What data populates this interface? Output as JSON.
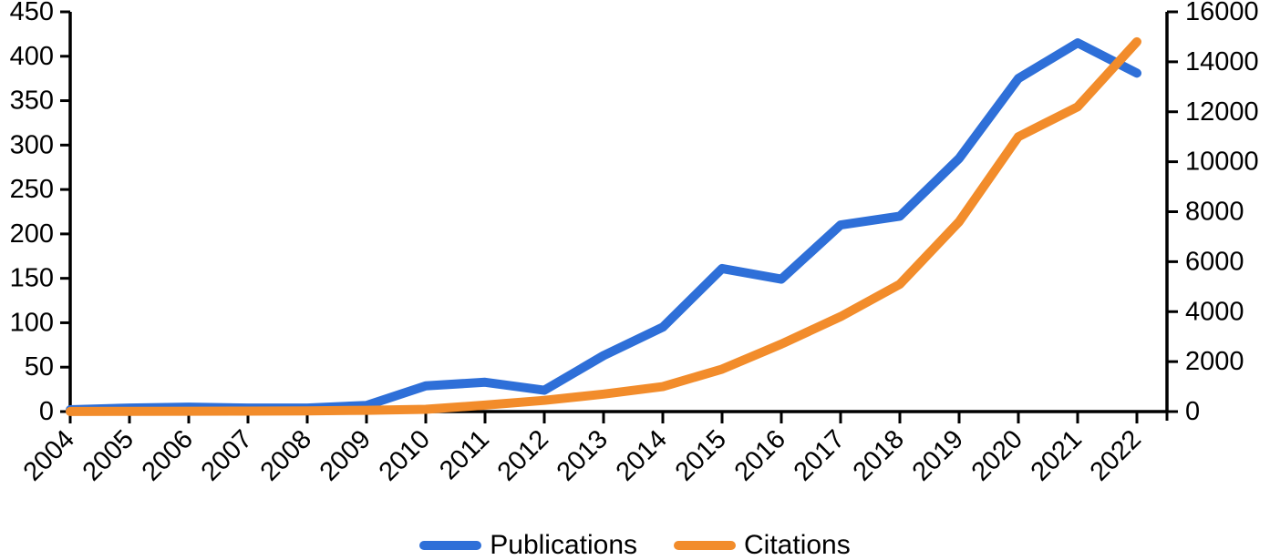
{
  "chart_data": {
    "type": "line",
    "title": "",
    "x": [
      "2004",
      "2005",
      "2006",
      "2007",
      "2008",
      "2009",
      "2010",
      "2011",
      "2012",
      "2013",
      "2014",
      "2015",
      "2016",
      "2017",
      "2018",
      "2019",
      "2020",
      "2021",
      "2022"
    ],
    "series": [
      {
        "name": "Publications",
        "axis": "left",
        "color": "#2e6fd8",
        "values": [
          2,
          4,
          5,
          4,
          4,
          7,
          29,
          33,
          24,
          63,
          95,
          161,
          149,
          210,
          220,
          285,
          375,
          415,
          381
        ]
      },
      {
        "name": "Citations",
        "axis": "right",
        "color": "#f28c2b",
        "values": [
          5,
          10,
          15,
          20,
          30,
          50,
          90,
          260,
          450,
          700,
          1000,
          1700,
          2700,
          3800,
          5100,
          7600,
          11000,
          12200,
          14800
        ]
      }
    ],
    "left_axis": {
      "label": "",
      "min": 0,
      "max": 450,
      "ticks": [
        0,
        50,
        100,
        150,
        200,
        250,
        300,
        350,
        400,
        450
      ]
    },
    "right_axis": {
      "label": "",
      "min": 0,
      "max": 16000,
      "ticks": [
        0,
        2000,
        4000,
        6000,
        8000,
        10000,
        12000,
        14000,
        16000
      ]
    },
    "legend_position": "bottom",
    "grid": false,
    "axis_color": "#000000"
  }
}
